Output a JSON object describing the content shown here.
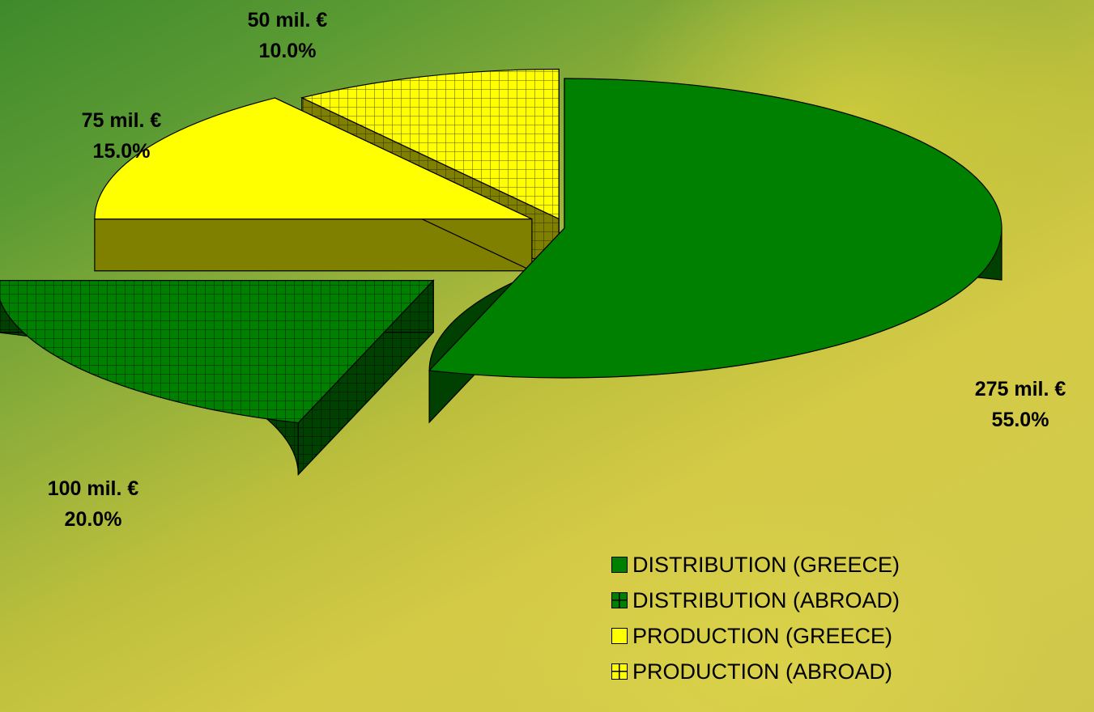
{
  "chart_data": {
    "type": "pie",
    "title": "",
    "slices": [
      {
        "label": "DISTRIBUTION (GREECE)",
        "value": 275,
        "percent": "55.0%",
        "amount_label": "275 mil. €",
        "color": "#008000",
        "pattern": "solid",
        "exploded": false
      },
      {
        "label": "DISTRIBUTION (ABROAD)",
        "value": 100,
        "percent": "20.0%",
        "amount_label": "100 mil. €",
        "color": "#008000",
        "pattern": "grid",
        "exploded": true
      },
      {
        "label": "PRODUCTION (GREECE)",
        "value": 75,
        "percent": "15.0%",
        "amount_label": "75 mil. €",
        "color": "#ffff00",
        "pattern": "solid",
        "exploded": true
      },
      {
        "label": "PRODUCTION (ABROAD)",
        "value": 50,
        "percent": "10.0%",
        "amount_label": "50 mil. €",
        "color": "#ffff00",
        "pattern": "grid",
        "exploded": true
      }
    ],
    "legend_position": "bottom-right",
    "perspective": "3d"
  }
}
